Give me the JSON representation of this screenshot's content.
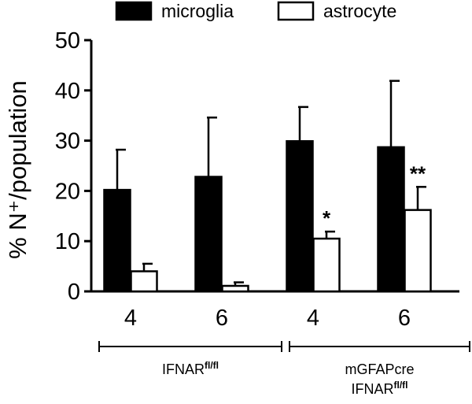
{
  "chart_data": {
    "type": "bar",
    "ylabel": "% N⁺/population",
    "ylim": [
      0,
      50
    ],
    "yticks": [
      0,
      10,
      20,
      30,
      40,
      50
    ],
    "legend_position": "top",
    "series": [
      {
        "name": "microglia",
        "color": "#000000",
        "fill": "#000000",
        "values": [
          20.2,
          22.8,
          29.9,
          28.7
        ],
        "errors": [
          8.0,
          11.8,
          6.8,
          13.2
        ]
      },
      {
        "name": "astrocyte",
        "color": "#000000",
        "fill": "#ffffff",
        "values": [
          4.0,
          1.1,
          10.5,
          16.2
        ],
        "errors": [
          1.5,
          0.7,
          1.4,
          4.6
        ]
      }
    ],
    "categories": [
      "4",
      "6",
      "4",
      "6"
    ],
    "annotations": [
      {
        "series": 1,
        "index": 2,
        "text": "*"
      },
      {
        "series": 1,
        "index": 3,
        "text": "**"
      }
    ],
    "groups": [
      {
        "lines": [
          {
            "text": "IFNAR",
            "sup": "fl/fl"
          }
        ],
        "span": [
          0,
          1
        ]
      },
      {
        "lines": [
          {
            "text": "mGFAPcre",
            "sup": ""
          },
          {
            "text": "IFNAR",
            "sup": "fl/fl"
          }
        ],
        "span": [
          2,
          3
        ]
      }
    ]
  }
}
